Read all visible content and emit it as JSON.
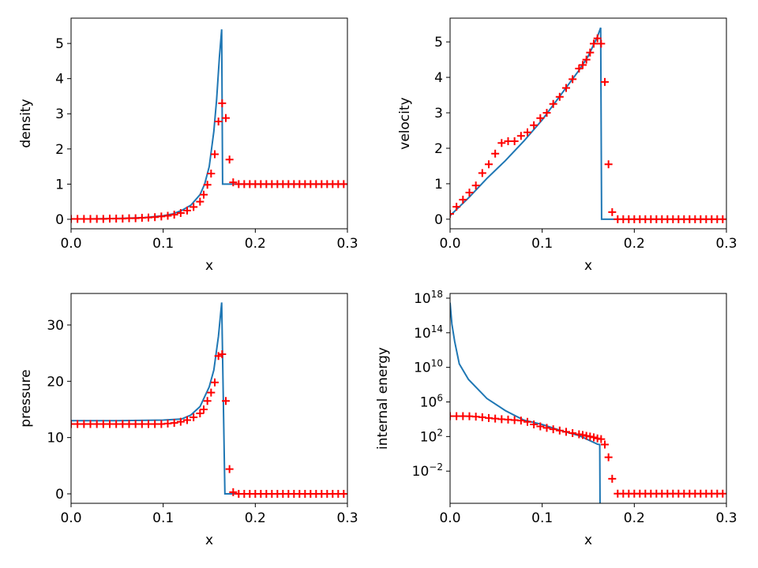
{
  "chart_data": [
    {
      "type": "line",
      "xlabel": "x",
      "ylabel": "density",
      "xlim": [
        0,
        0.3
      ],
      "ylim": [
        -0.27,
        5.72
      ],
      "xticks": [
        {
          "value": 0,
          "label": "0.0"
        },
        {
          "value": 0.1,
          "label": "0.1"
        },
        {
          "value": 0.2,
          "label": "0.2"
        },
        {
          "value": 0.3,
          "label": "0.3"
        }
      ],
      "yticks": [
        0,
        1,
        2,
        3,
        4,
        5
      ],
      "series": [
        {
          "style": "line",
          "color": "#1f77b4",
          "x": [
            0,
            0.02,
            0.04,
            0.06,
            0.08,
            0.1,
            0.11,
            0.12,
            0.13,
            0.14,
            0.145,
            0.15,
            0.155,
            0.158,
            0.161,
            0.1635,
            0.1645,
            0.2,
            0.3
          ],
          "values": [
            0.01,
            0.01,
            0.02,
            0.03,
            0.05,
            0.1,
            0.15,
            0.25,
            0.4,
            0.7,
            1.0,
            1.5,
            2.5,
            3.4,
            4.6,
            5.4,
            1.0,
            1.0,
            1.0
          ]
        },
        {
          "style": "plus",
          "color": "red",
          "x": [
            0,
            0.007,
            0.014,
            0.021,
            0.028,
            0.035,
            0.042,
            0.049,
            0.056,
            0.063,
            0.07,
            0.077,
            0.084,
            0.091,
            0.098,
            0.105,
            0.112,
            0.119,
            0.126,
            0.133,
            0.14,
            0.144,
            0.148,
            0.152,
            0.156,
            0.16,
            0.164,
            0.168,
            0.172,
            0.176,
            0.182,
            0.188,
            0.194,
            0.2,
            0.206,
            0.212,
            0.218,
            0.224,
            0.23,
            0.236,
            0.242,
            0.248,
            0.254,
            0.26,
            0.266,
            0.272,
            0.278,
            0.284,
            0.29,
            0.296
          ],
          "values": [
            0.01,
            0.01,
            0.01,
            0.01,
            0.01,
            0.01,
            0.02,
            0.02,
            0.02,
            0.03,
            0.03,
            0.04,
            0.05,
            0.06,
            0.08,
            0.1,
            0.13,
            0.18,
            0.25,
            0.35,
            0.5,
            0.7,
            0.98,
            1.3,
            1.85,
            2.78,
            3.3,
            2.88,
            1.7,
            1.05,
            1.0,
            1.0,
            1.0,
            1.0,
            1.0,
            1.0,
            1.0,
            1.0,
            1.0,
            1.0,
            1.0,
            1.0,
            1.0,
            1.0,
            1.0,
            1.0,
            1.0,
            1.0,
            1.0,
            1.0
          ]
        }
      ]
    },
    {
      "type": "line",
      "xlabel": "x",
      "ylabel": "velocity",
      "xlim": [
        0,
        0.3
      ],
      "ylim": [
        -0.27,
        5.67
      ],
      "xticks": [
        {
          "value": 0,
          "label": "0.0"
        },
        {
          "value": 0.1,
          "label": "0.1"
        },
        {
          "value": 0.2,
          "label": "0.2"
        },
        {
          "value": 0.3,
          "label": "0.3"
        }
      ],
      "yticks": [
        0,
        1,
        2,
        3,
        4,
        5
      ],
      "series": [
        {
          "style": "line",
          "color": "#1f77b4",
          "x": [
            0,
            0.02,
            0.04,
            0.06,
            0.08,
            0.1,
            0.12,
            0.14,
            0.15,
            0.16,
            0.1635,
            0.1645,
            0.3
          ],
          "values": [
            0.1,
            0.6,
            1.15,
            1.65,
            2.2,
            2.8,
            3.5,
            4.2,
            4.6,
            5.15,
            5.4,
            0,
            0
          ]
        },
        {
          "style": "plus",
          "color": "red",
          "x": [
            0,
            0.007,
            0.014,
            0.021,
            0.028,
            0.035,
            0.042,
            0.049,
            0.056,
            0.063,
            0.07,
            0.077,
            0.084,
            0.091,
            0.098,
            0.105,
            0.112,
            0.119,
            0.126,
            0.133,
            0.14,
            0.144,
            0.148,
            0.152,
            0.156,
            0.16,
            0.164,
            0.168,
            0.172,
            0.176,
            0.182,
            0.188,
            0.194,
            0.2,
            0.206,
            0.212,
            0.218,
            0.224,
            0.23,
            0.236,
            0.242,
            0.248,
            0.254,
            0.26,
            0.266,
            0.272,
            0.278,
            0.284,
            0.29,
            0.296
          ],
          "values": [
            0.15,
            0.35,
            0.55,
            0.75,
            0.95,
            1.3,
            1.55,
            1.85,
            2.15,
            2.2,
            2.2,
            2.35,
            2.45,
            2.65,
            2.85,
            3.0,
            3.25,
            3.45,
            3.7,
            3.95,
            4.25,
            4.35,
            4.5,
            4.7,
            4.95,
            5.1,
            4.95,
            3.87,
            1.55,
            0.2,
            0,
            0,
            0,
            0,
            0,
            0,
            0,
            0,
            0,
            0,
            0,
            0,
            0,
            0,
            0,
            0,
            0,
            0,
            0,
            0
          ]
        }
      ]
    },
    {
      "type": "line",
      "xlabel": "x",
      "ylabel": "pressure",
      "xlim": [
        0,
        0.3
      ],
      "ylim": [
        -1.68,
        35.6
      ],
      "xticks": [
        {
          "value": 0,
          "label": "0.0"
        },
        {
          "value": 0.1,
          "label": "0.1"
        },
        {
          "value": 0.2,
          "label": "0.2"
        },
        {
          "value": 0.3,
          "label": "0.3"
        }
      ],
      "yticks": [
        0,
        10,
        20,
        30
      ],
      "series": [
        {
          "style": "line",
          "color": "#1f77b4",
          "x": [
            0,
            0.05,
            0.1,
            0.12,
            0.13,
            0.14,
            0.15,
            0.155,
            0.16,
            0.1635,
            0.167,
            0.2,
            0.3
          ],
          "values": [
            13,
            13,
            13.1,
            13.3,
            14,
            15.5,
            19,
            22,
            28,
            34,
            0,
            0,
            0
          ]
        },
        {
          "style": "plus",
          "color": "red",
          "x": [
            0,
            0.007,
            0.014,
            0.021,
            0.028,
            0.035,
            0.042,
            0.049,
            0.056,
            0.063,
            0.07,
            0.077,
            0.084,
            0.091,
            0.098,
            0.105,
            0.112,
            0.119,
            0.126,
            0.133,
            0.14,
            0.144,
            0.148,
            0.152,
            0.156,
            0.16,
            0.164,
            0.168,
            0.172,
            0.176,
            0.182,
            0.188,
            0.194,
            0.2,
            0.206,
            0.212,
            0.218,
            0.224,
            0.23,
            0.236,
            0.242,
            0.248,
            0.254,
            0.26,
            0.266,
            0.272,
            0.278,
            0.284,
            0.29,
            0.296
          ],
          "values": [
            12.4,
            12.4,
            12.4,
            12.4,
            12.4,
            12.4,
            12.4,
            12.4,
            12.4,
            12.4,
            12.4,
            12.4,
            12.4,
            12.4,
            12.4,
            12.5,
            12.6,
            12.8,
            13.1,
            13.6,
            14.3,
            15,
            16.5,
            18,
            19.8,
            24.5,
            24.8,
            16.5,
            4.4,
            0.3,
            0,
            0,
            0,
            0,
            0,
            0,
            0,
            0,
            0,
            0,
            0,
            0,
            0,
            0,
            0,
            0,
            0,
            0,
            0,
            0
          ]
        }
      ]
    },
    {
      "type": "line",
      "xlabel": "x",
      "ylabel": "internal energy",
      "yscale": "log",
      "xlim": [
        0,
        0.3
      ],
      "ylim": [
        1.9e-06,
        3.5e+18
      ],
      "xticks": [
        {
          "value": 0,
          "label": "0.0"
        },
        {
          "value": 0.1,
          "label": "0.1"
        },
        {
          "value": 0.2,
          "label": "0.2"
        },
        {
          "value": 0.3,
          "label": "0.3"
        }
      ],
      "yticks": [
        {
          "value": 0.01,
          "label": "10^−2"
        },
        {
          "value": 100,
          "label": "10^2"
        },
        {
          "value": 1000000.0,
          "label": "10^6"
        },
        {
          "value": 10000000000.0,
          "label": "10^10"
        },
        {
          "value": 100000000000000.0,
          "label": "10^14"
        },
        {
          "value": 1e+18,
          "label": "10^18"
        }
      ],
      "series": [
        {
          "style": "line",
          "color": "#1f77b4",
          "x": [
            0,
            0.002,
            0.005,
            0.01,
            0.02,
            0.04,
            0.06,
            0.08,
            0.1,
            0.12,
            0.14,
            0.16,
            0.1625,
            0.163
          ],
          "values": [
            3e+17,
            1000000000000000.0,
            10000000000000.0,
            25000000000.0,
            400000000.0,
            2500000.0,
            100000.0,
            8000.0,
            2500.0,
            500.0,
            130.0,
            13.0,
            12.0,
            1e-10
          ]
        },
        {
          "style": "plus",
          "color": "red",
          "x": [
            0,
            0.007,
            0.014,
            0.021,
            0.028,
            0.035,
            0.042,
            0.049,
            0.056,
            0.063,
            0.07,
            0.077,
            0.084,
            0.091,
            0.098,
            0.105,
            0.112,
            0.119,
            0.126,
            0.133,
            0.14,
            0.144,
            0.148,
            0.152,
            0.156,
            0.16,
            0.164,
            0.168,
            0.172,
            0.176,
            0.182,
            0.188,
            0.194,
            0.2,
            0.206,
            0.212,
            0.218,
            0.224,
            0.23,
            0.236,
            0.242,
            0.248,
            0.254,
            0.26,
            0.266,
            0.272,
            0.278,
            0.284,
            0.29,
            0.296
          ],
          "values": [
            23000.0,
            23000.0,
            23000.0,
            22000.0,
            20000.0,
            17000.0,
            14000.0,
            12000.0,
            10000.0,
            9000.0,
            8000.0,
            7000.0,
            5000.0,
            2500.0,
            1500.0,
            1000.0,
            700.0,
            500.0,
            350.0,
            250.0,
            180.0,
            150.0,
            120.0,
            100.0,
            80.0,
            60.0,
            50.0,
            12,
            0.4,
            0.0013,
            2.5e-05,
            2.5e-05,
            2.5e-05,
            2.5e-05,
            2.5e-05,
            2.5e-05,
            2.5e-05,
            2.5e-05,
            2.5e-05,
            2.5e-05,
            2.5e-05,
            2.5e-05,
            2.5e-05,
            2.5e-05,
            2.5e-05,
            2.5e-05,
            2.5e-05,
            2.5e-05,
            2.5e-05,
            2.5e-05
          ]
        }
      ]
    }
  ]
}
